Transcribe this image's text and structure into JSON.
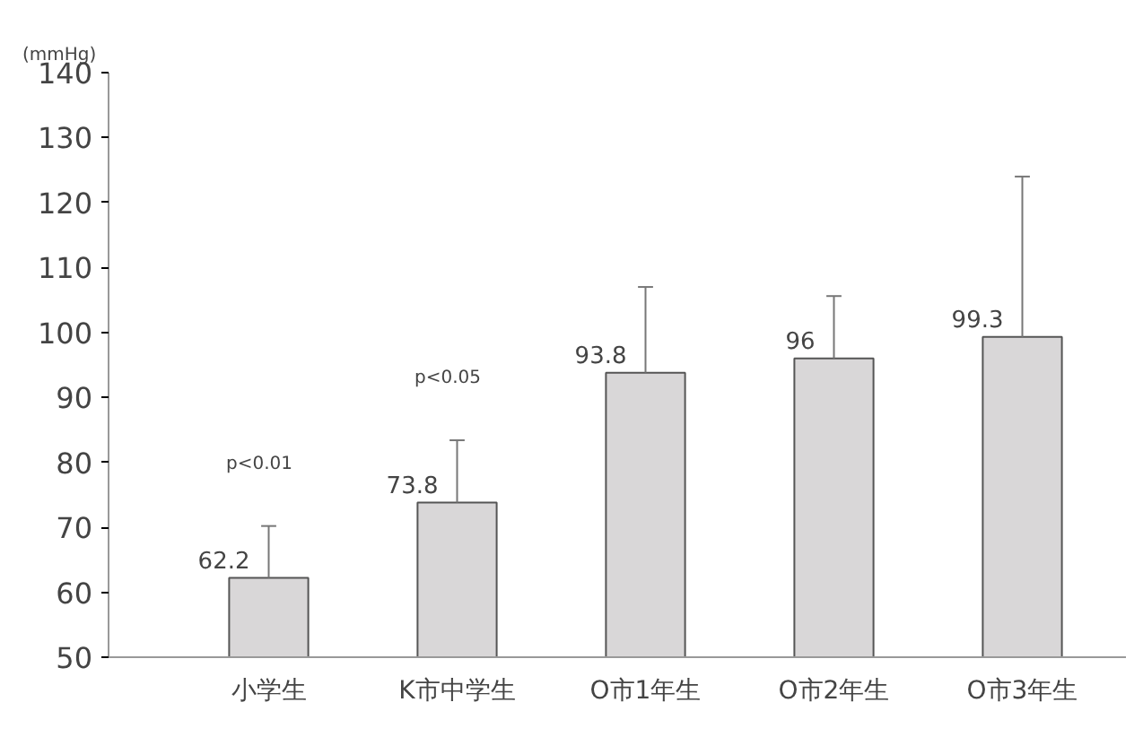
{
  "chart_data": {
    "type": "bar",
    "ylabel": "(mmHg)",
    "categories": [
      "小学生",
      "K市中学生",
      "O市1年生",
      "O市2年生",
      "O市3年生"
    ],
    "values": [
      62.2,
      73.8,
      93.8,
      96,
      99.3
    ],
    "errors": [
      [
        62.2,
        70.2
      ],
      [
        73.8,
        83.4
      ],
      [
        93.8,
        107
      ],
      [
        96,
        105.6
      ],
      [
        99.3,
        124
      ]
    ],
    "color": "#d9d7d8",
    "ylim": [
      50,
      140
    ],
    "yticks": [
      50,
      60,
      70,
      80,
      90,
      100,
      110,
      120,
      130,
      140
    ],
    "grid": false,
    "data_labels": true,
    "annotations": [
      "p<0.01",
      "p<0.05"
    ]
  }
}
